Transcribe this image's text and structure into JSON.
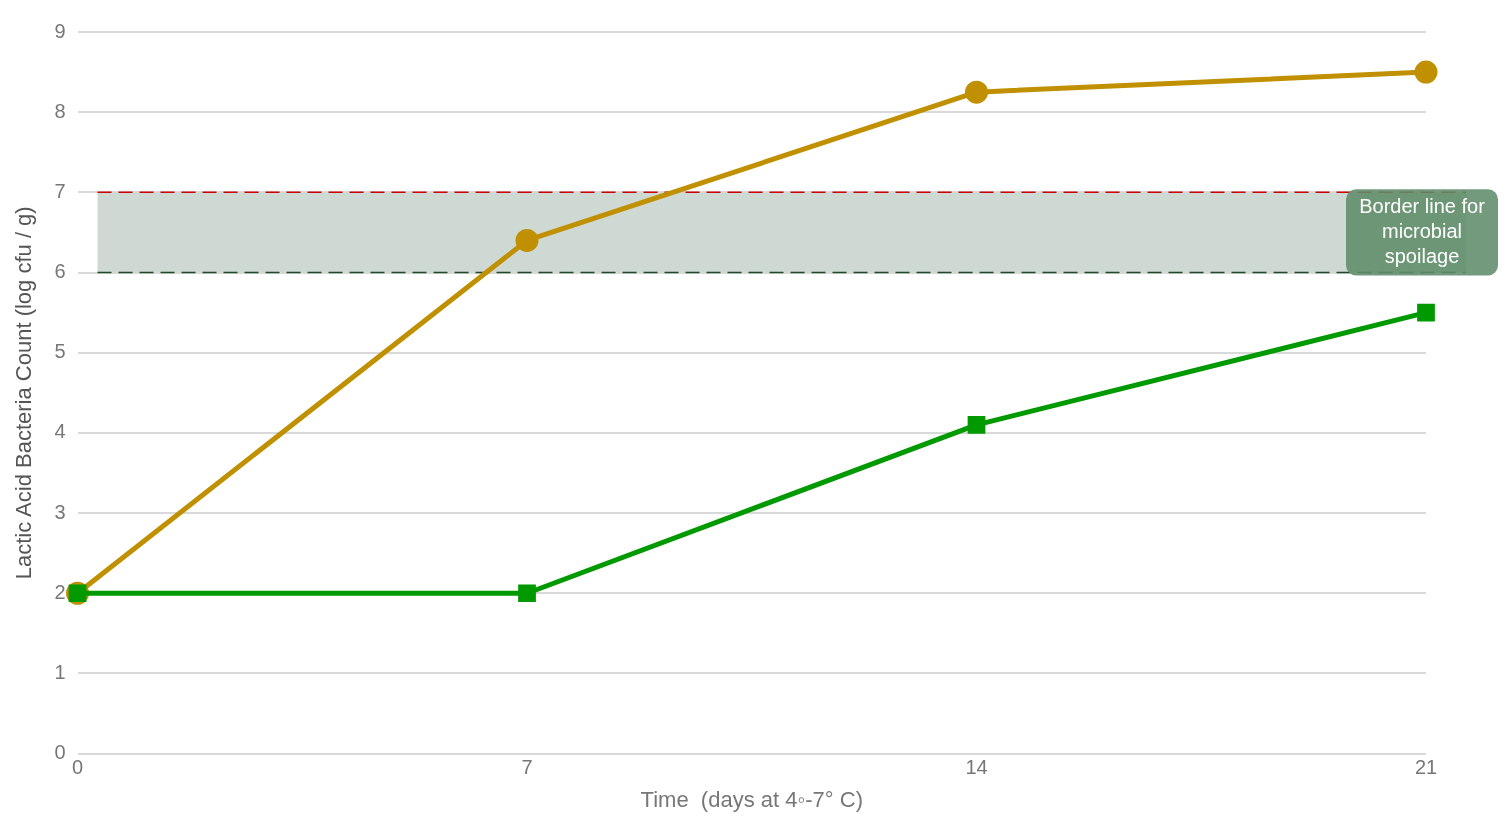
{
  "chart_data": {
    "type": "line",
    "xlabel": "Time  (days at 4◦-7° C)",
    "ylabel": "Lactic Acid Bacteria Count (log cfu / g)",
    "x": [
      0,
      7,
      14,
      21
    ],
    "xlim": [
      0,
      21
    ],
    "xticks": [
      0,
      7,
      14,
      21
    ],
    "ylim": [
      0,
      9
    ],
    "yticks": [
      0,
      1,
      2,
      3,
      4,
      5,
      6,
      7,
      8,
      9
    ],
    "series": [
      {
        "color": "#c09000",
        "marker": "circle",
        "values": [
          2,
          6.4,
          8.25,
          8.5
        ]
      },
      {
        "color": "#009900",
        "marker": "square",
        "values": [
          2,
          2,
          4.1,
          5.5
        ]
      }
    ],
    "bands": [
      {
        "axis": "y",
        "from": 6,
        "to": 7,
        "label": "Border line for microbial spoilage",
        "color": "#cfd9d3"
      }
    ],
    "ref_lines": [
      {
        "axis": "y",
        "value": 7,
        "color": "#cc0000",
        "line_style": "dashed"
      },
      {
        "axis": "y",
        "value": 6,
        "color": "#1f4a2a",
        "line_style": "dashed"
      }
    ],
    "grid": "y",
    "line_style": "solid"
  }
}
